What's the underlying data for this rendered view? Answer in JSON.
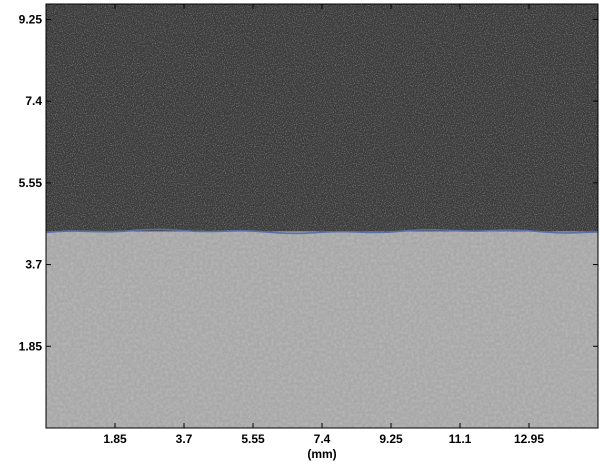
{
  "image": {
    "x_range_mm": [
      0,
      14.8
    ],
    "y_range_mm": [
      0,
      9.6
    ],
    "boundary_y_mm": 4.45,
    "upper_region_color": "#3b3b3b",
    "lower_region_color": "#a8a8a8",
    "boundary_color": "#5a6fa8"
  },
  "axes": {
    "x_unit": "(mm)",
    "x_ticks": [
      {
        "value": 1.85,
        "label": "1.85"
      },
      {
        "value": 3.7,
        "label": "3.7"
      },
      {
        "value": 5.55,
        "label": "5.55"
      },
      {
        "value": 7.4,
        "label": "7.4"
      },
      {
        "value": 9.25,
        "label": "9.25"
      },
      {
        "value": 11.1,
        "label": "11.1"
      },
      {
        "value": 12.95,
        "label": "12.95"
      }
    ],
    "y_ticks": [
      {
        "value": 9.25,
        "label": "9.25"
      },
      {
        "value": 7.4,
        "label": "7.4"
      },
      {
        "value": 5.55,
        "label": "5.55"
      },
      {
        "value": 3.7,
        "label": "3.7"
      },
      {
        "value": 1.85,
        "label": "1.85"
      }
    ]
  }
}
